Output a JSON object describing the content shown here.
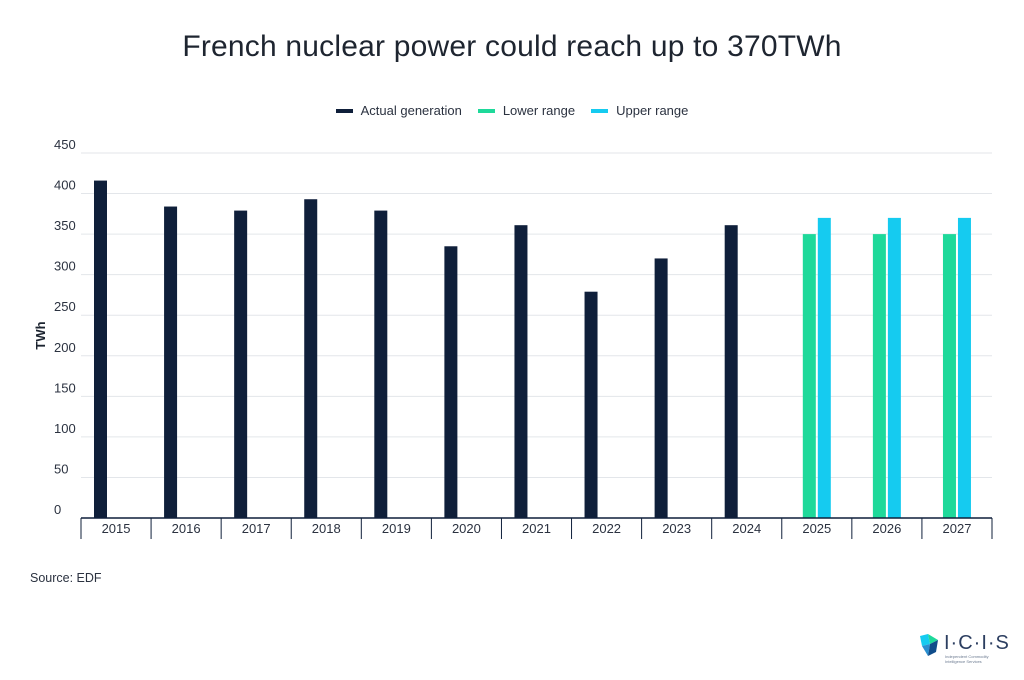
{
  "chart_data": {
    "type": "bar",
    "title": "French nuclear power could reach up to 370TWh",
    "ylabel": "TWh",
    "xlabel": "",
    "ylim": [
      0,
      450
    ],
    "yticks": [
      0,
      50,
      100,
      150,
      200,
      250,
      300,
      350,
      400,
      450
    ],
    "categories": [
      "2015",
      "2016",
      "2017",
      "2018",
      "2019",
      "2020",
      "2021",
      "2022",
      "2023",
      "2024",
      "2025",
      "2026",
      "2027"
    ],
    "series": [
      {
        "name": "Actual generation",
        "color": "#0f1f3a",
        "values": [
          416,
          384,
          379,
          393,
          379,
          335,
          361,
          279,
          320,
          361,
          null,
          null,
          null
        ]
      },
      {
        "name": "Lower range",
        "color": "#1ed99a",
        "values": [
          null,
          null,
          null,
          null,
          null,
          null,
          null,
          null,
          null,
          null,
          350,
          350,
          350
        ]
      },
      {
        "name": "Upper range",
        "color": "#15cbf0",
        "values": [
          null,
          null,
          null,
          null,
          null,
          null,
          null,
          null,
          null,
          null,
          370,
          370,
          370
        ]
      }
    ],
    "grid": true,
    "legend_position": "top-center"
  },
  "source": "Source: EDF",
  "logo": {
    "text": "I·C·I·S",
    "subtitle": "Independent Commodity Intelligence Services"
  }
}
